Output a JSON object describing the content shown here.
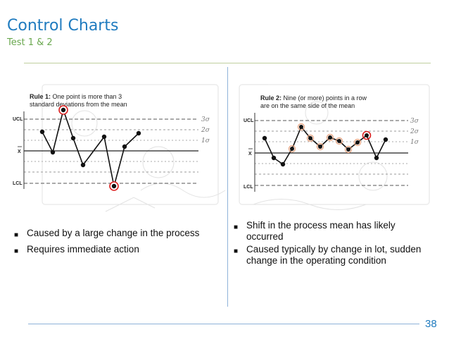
{
  "header": {
    "title": "Control Charts",
    "subtitle": "Test 1 & 2"
  },
  "page_number": "38",
  "left_bullets": [
    "Caused by a large change in the process",
    "Requires immediate action"
  ],
  "right_bullets": [
    "Shift in the process mean has likely occurred",
    "Caused typically by change in lot, sudden change in the operating condition"
  ],
  "rule1": {
    "title_bold": "Rule 1:",
    "title_rest_line1": " One point is more than 3",
    "title_line2": "standard deviations from the mean",
    "labels": {
      "ucl": "UCL",
      "mean": "X",
      "lcl": "LCL"
    },
    "sigma_labels": [
      "3σ",
      "2σ",
      "1σ"
    ]
  },
  "rule2": {
    "title_bold": "Rule 2:",
    "title_rest_line1": " Nine (or more) points in a row",
    "title_line2": "are on the same side of the mean",
    "labels": {
      "ucl": "UCL",
      "mean": "X",
      "lcl": "LCL"
    },
    "sigma_labels": [
      "3σ",
      "2σ",
      "1σ"
    ]
  }
}
